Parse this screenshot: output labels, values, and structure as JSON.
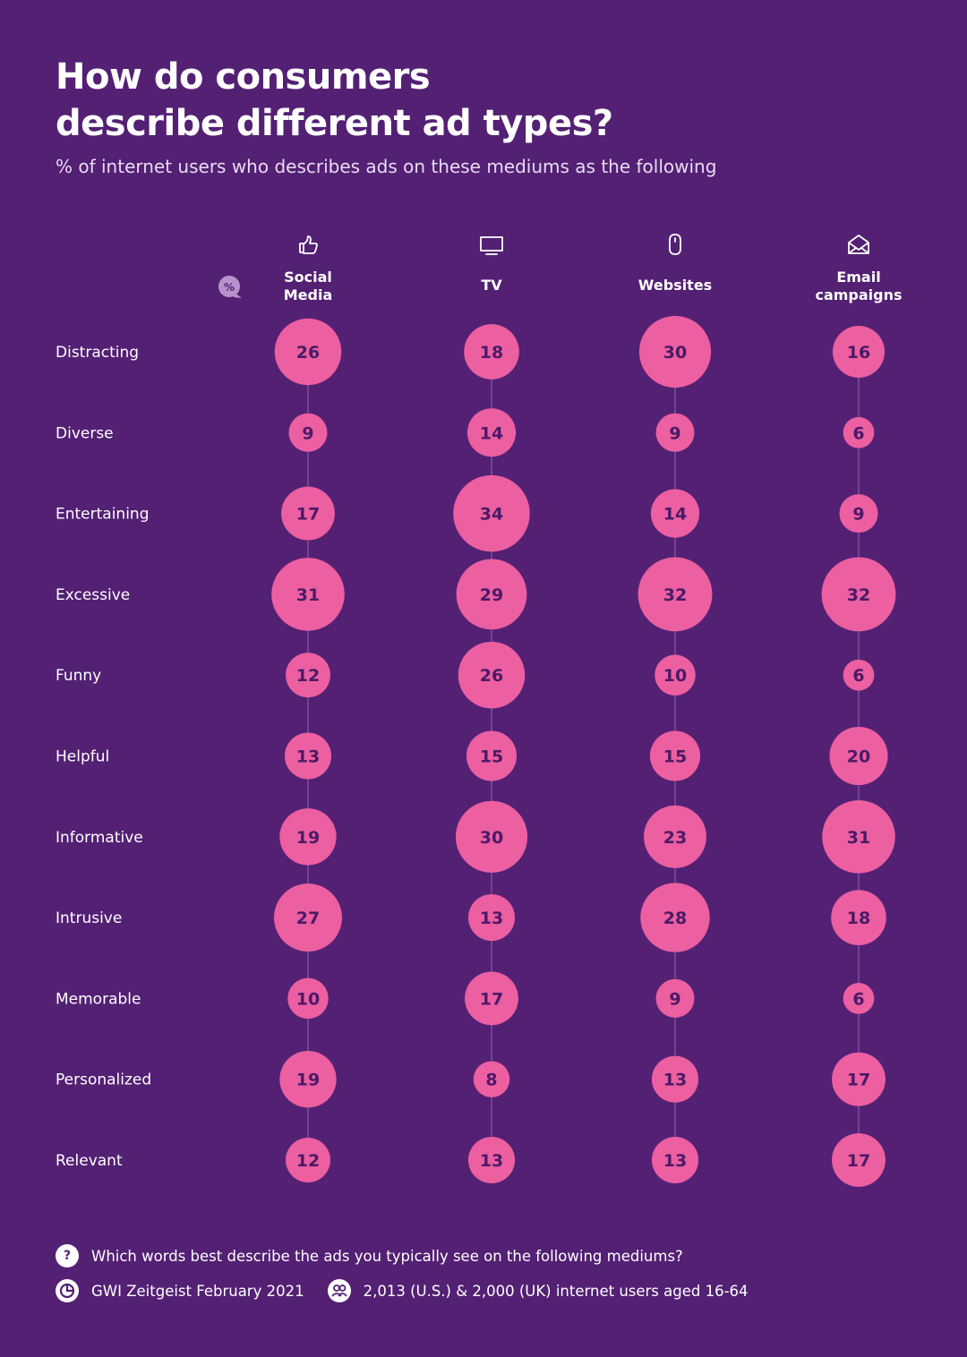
{
  "header": {
    "title_line1": "How do consumers",
    "title_line2": "describe different ad types?",
    "subtitle": "% of internet users who describes ads on these mediums as the following"
  },
  "colors": {
    "background": "#532074",
    "bubble": "#ec5fa0",
    "bubble_text": "#4a1a68",
    "connector": "#8a5aa6"
  },
  "chart_data": {
    "type": "bubble-matrix",
    "unit_badge": "%",
    "columns": [
      {
        "name_lines": [
          "Social",
          "Media"
        ],
        "icon": "thumbs-up-icon"
      },
      {
        "name_lines": [
          "TV"
        ],
        "icon": "tv-icon"
      },
      {
        "name_lines": [
          "Websites"
        ],
        "icon": "mouse-icon"
      },
      {
        "name_lines": [
          "Email",
          "campaigns"
        ],
        "icon": "envelope-icon"
      }
    ],
    "rows": [
      "Distracting",
      "Diverse",
      "Entertaining",
      "Excessive",
      "Funny",
      "Helpful",
      "Informative",
      "Intrusive",
      "Memorable",
      "Personalized",
      "Relevant"
    ],
    "values": [
      [
        26,
        18,
        30,
        16
      ],
      [
        9,
        14,
        9,
        6
      ],
      [
        17,
        34,
        14,
        9
      ],
      [
        31,
        29,
        32,
        32
      ],
      [
        12,
        26,
        10,
        6
      ],
      [
        13,
        15,
        15,
        20
      ],
      [
        19,
        30,
        23,
        31
      ],
      [
        27,
        13,
        28,
        18
      ],
      [
        10,
        17,
        9,
        6
      ],
      [
        19,
        8,
        13,
        17
      ],
      [
        12,
        13,
        13,
        17
      ]
    ]
  },
  "footer": {
    "question_icon": "?",
    "question": "Which words best describe the ads you typically see on the following mediums?",
    "source_icon": "gwi-logo-icon",
    "source": "GWI Zeitgeist February 2021",
    "sample_icon": "people-icon",
    "sample": "2,013 (U.S.) & 2,000 (UK) internet users aged 16-64"
  }
}
